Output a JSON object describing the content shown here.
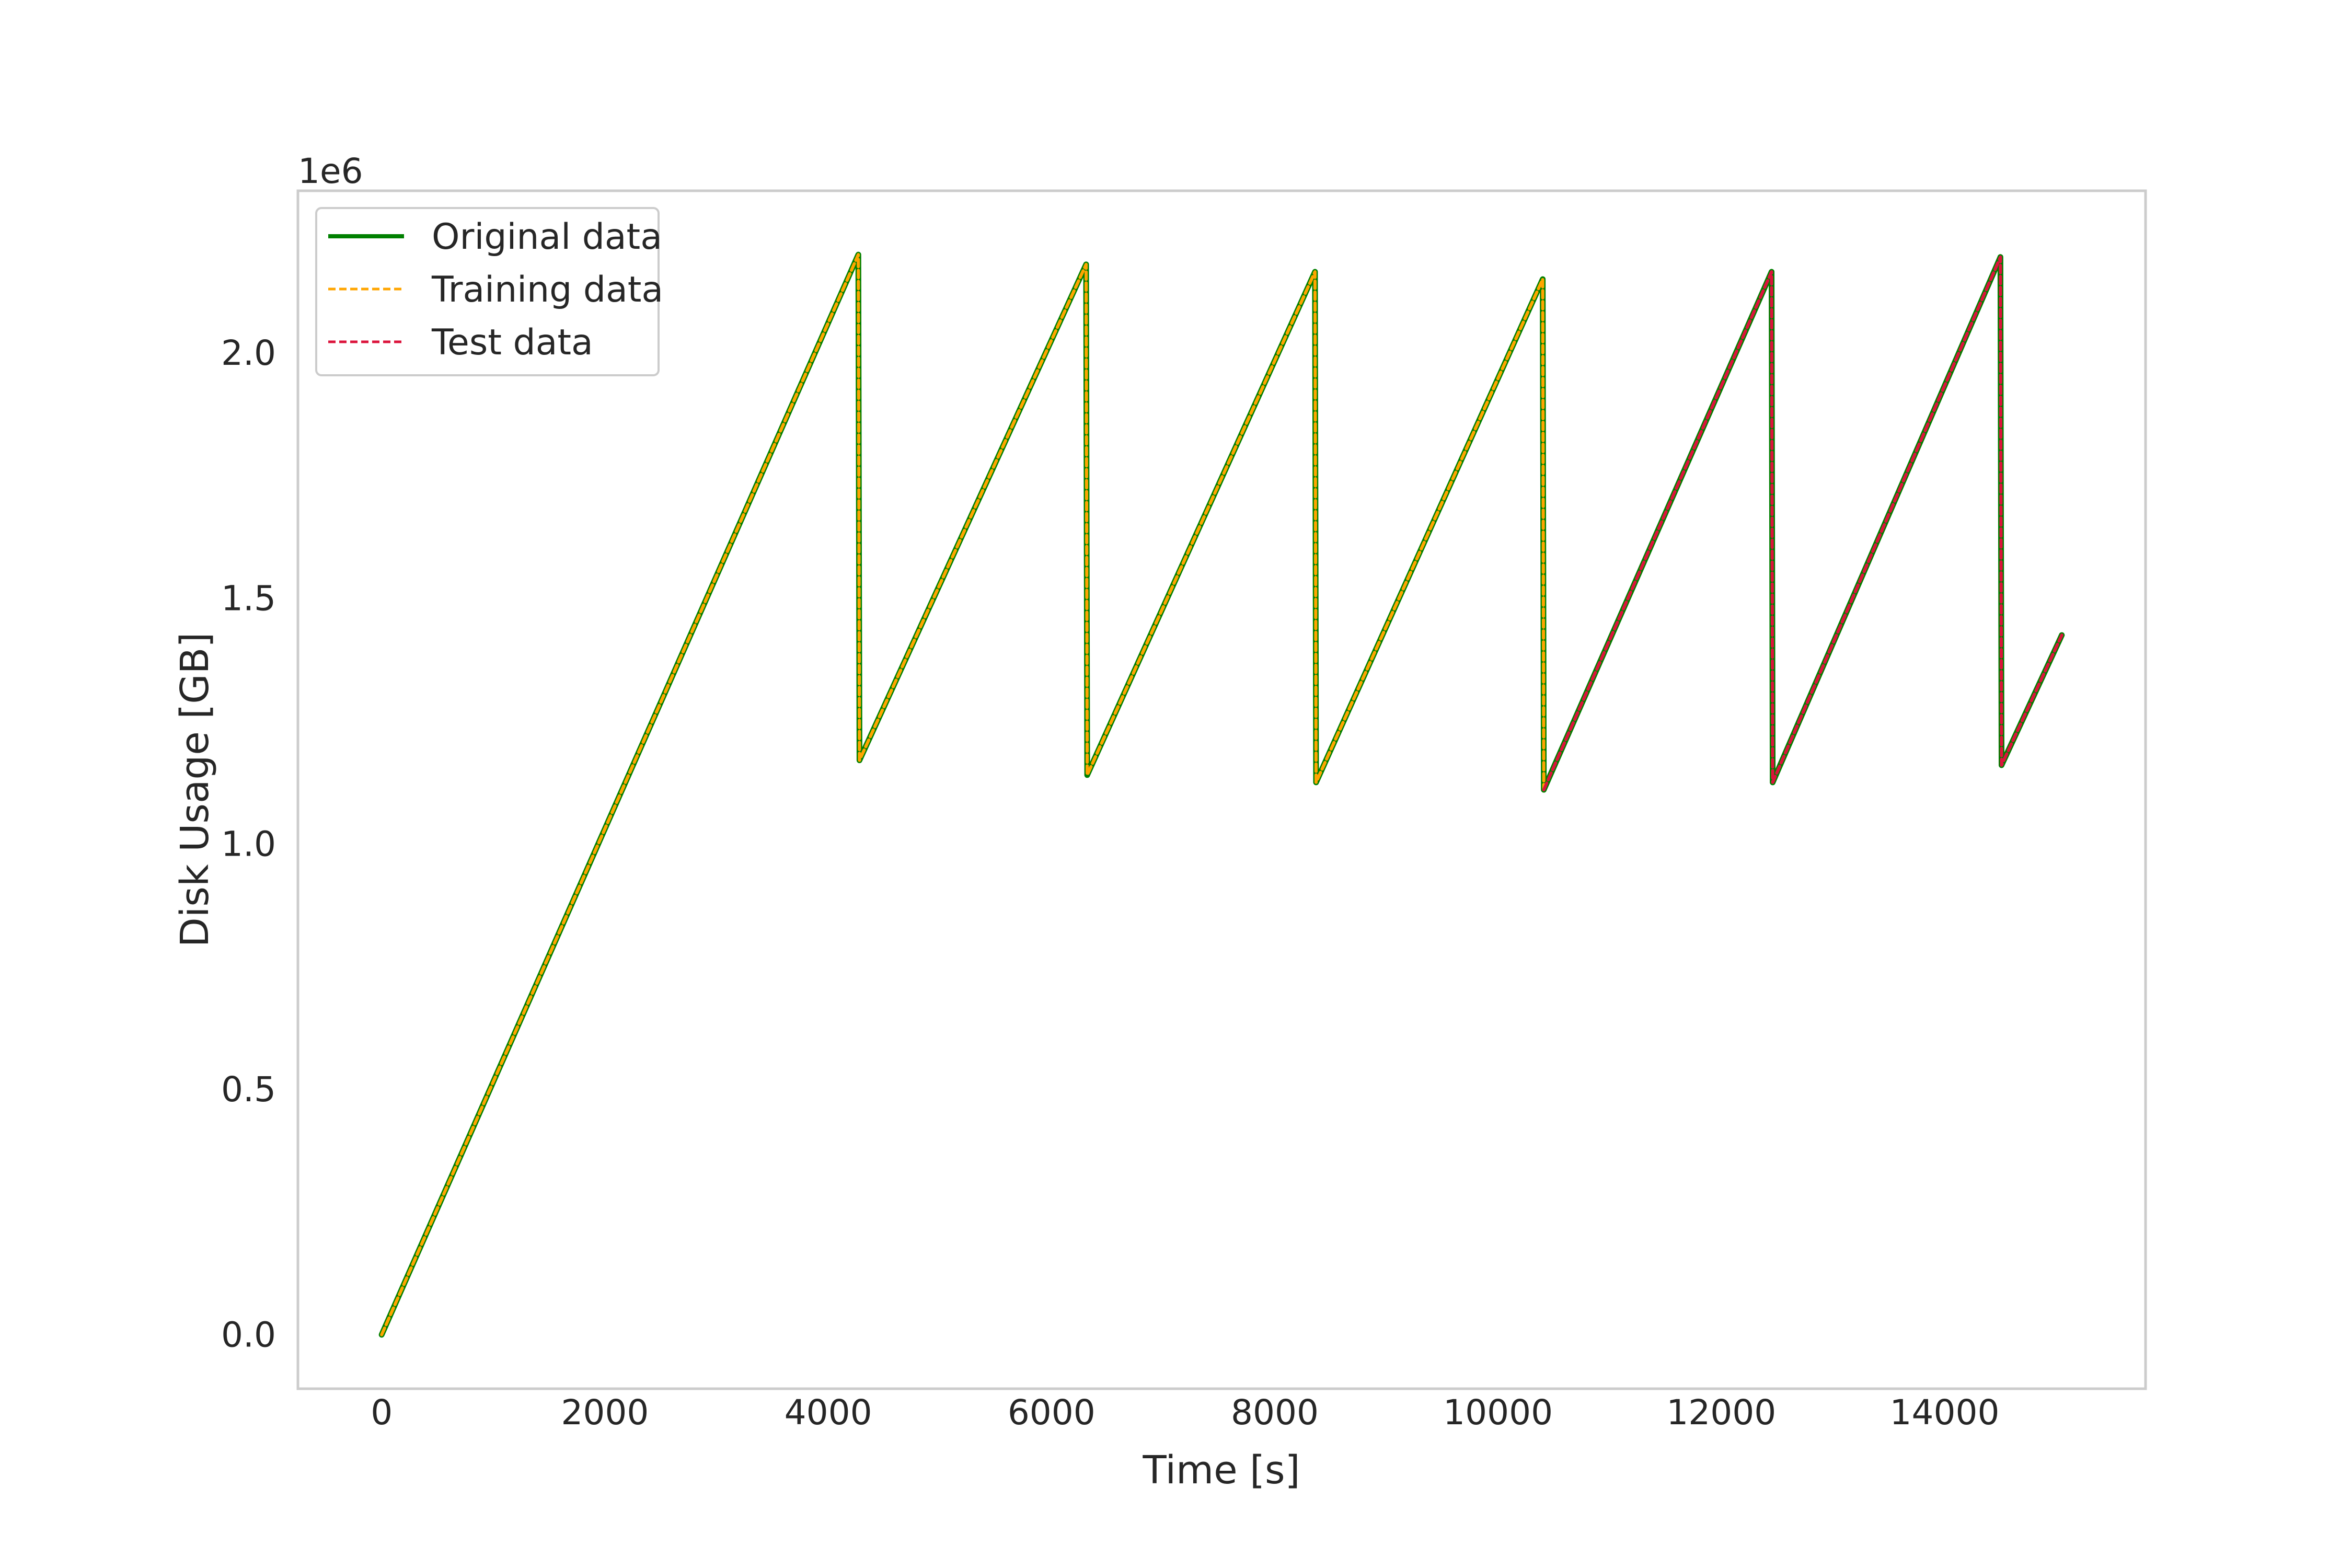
{
  "chart_data": {
    "type": "line",
    "title": "",
    "xlabel": "Time [s]",
    "ylabel": "Disk Usage [GB]",
    "y_offset_label": "1e6",
    "xlim": [
      -750,
      15800
    ],
    "ylim": [
      -110000,
      2330000
    ],
    "xticks": [
      0,
      2000,
      4000,
      6000,
      8000,
      10000,
      12000,
      14000
    ],
    "xtick_labels": [
      "0",
      "2000",
      "4000",
      "6000",
      "8000",
      "10000",
      "12000",
      "14000"
    ],
    "yticks": [
      0,
      500000,
      1000000,
      1500000,
      2000000
    ],
    "ytick_labels": [
      "0.0",
      "0.5",
      "1.0",
      "1.5",
      "2.0"
    ],
    "grid": false,
    "legend_position": "top-left",
    "series": [
      {
        "name": "Original data",
        "color": "#008000",
        "style": "solid",
        "x": [
          0,
          4270,
          4280,
          6310,
          6320,
          8360,
          8370,
          10400,
          10410,
          12450,
          12460,
          14500,
          14510,
          15050
        ],
        "y": [
          0,
          2200000,
          1170000,
          2180000,
          1140000,
          2165000,
          1125000,
          2150000,
          1110000,
          2165000,
          1125000,
          2195000,
          1160000,
          1425000
        ]
      },
      {
        "name": "Training data",
        "color": "#ffa500",
        "style": "dashed",
        "x": [
          0,
          4270,
          4280,
          6310,
          6320,
          8360,
          8370,
          10400,
          10410
        ],
        "y": [
          0,
          2200000,
          1170000,
          2180000,
          1140000,
          2165000,
          1125000,
          2150000,
          1110000
        ]
      },
      {
        "name": "Test data",
        "color": "#dc143c",
        "style": "dashed",
        "x": [
          10410,
          12450,
          12460,
          14500,
          14510,
          15050
        ],
        "y": [
          1110000,
          2165000,
          1125000,
          2195000,
          1160000,
          1425000
        ]
      }
    ]
  }
}
